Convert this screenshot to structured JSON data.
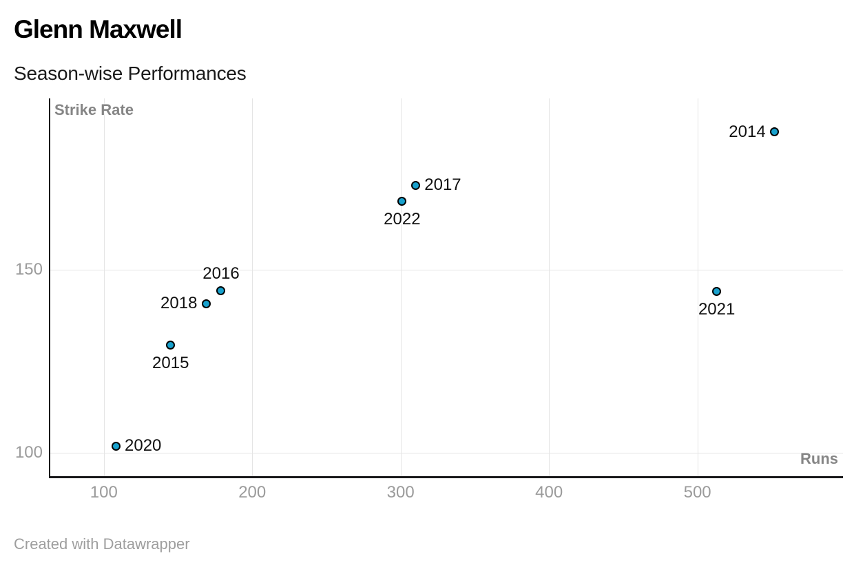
{
  "header": {
    "title": "Glenn Maxwell",
    "subtitle": "Season-wise Performances"
  },
  "footer": {
    "credit": "Created with Datawrapper"
  },
  "chart_data": {
    "type": "scatter",
    "title": "Glenn Maxwell",
    "subtitle": "Season-wise Performances",
    "xlabel": "Runs",
    "ylabel": "Strike Rate",
    "x_ticks": [
      100,
      200,
      300,
      400,
      500
    ],
    "y_ticks": [
      100,
      150
    ],
    "xlim": [
      63.9,
      598.1
    ],
    "ylim": [
      93.5,
      196.9
    ],
    "grid": true,
    "legend": "none",
    "point_fill": "#18a1cd",
    "point_stroke": "#000000",
    "points": [
      {
        "label": "2014",
        "runs": 552,
        "strike_rate": 187.75,
        "label_anchor": "left"
      },
      {
        "label": "2015",
        "runs": 145,
        "strike_rate": 129.46,
        "label_anchor": "bottom"
      },
      {
        "label": "2016",
        "runs": 179,
        "strike_rate": 144.35,
        "label_anchor": "top"
      },
      {
        "label": "2017",
        "runs": 310,
        "strike_rate": 173.18,
        "label_anchor": "right"
      },
      {
        "label": "2018",
        "runs": 169,
        "strike_rate": 140.83,
        "label_anchor": "left"
      },
      {
        "label": "2020",
        "runs": 108,
        "strike_rate": 101.88,
        "label_anchor": "right"
      },
      {
        "label": "2021",
        "runs": 513,
        "strike_rate": 144.1,
        "label_anchor": "bottom"
      },
      {
        "label": "2022",
        "runs": 301,
        "strike_rate": 168.72,
        "label_anchor": "bottom"
      }
    ]
  }
}
